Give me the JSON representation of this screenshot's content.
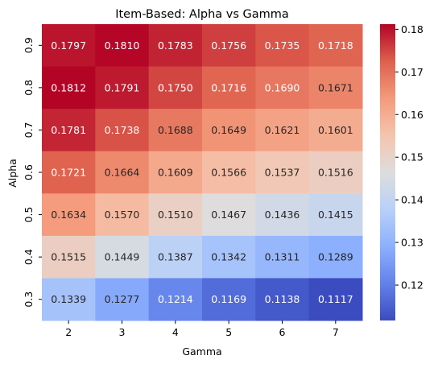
{
  "chart_data": {
    "type": "heatmap",
    "title": "Item-Based: Alpha vs Gamma",
    "xlabel": "Gamma",
    "ylabel": "Alpha",
    "x_categories": [
      "2",
      "3",
      "4",
      "5",
      "6",
      "7"
    ],
    "y_categories": [
      "0.9",
      "0.8",
      "0.7",
      "0.6",
      "0.5",
      "0.4",
      "0.3"
    ],
    "values": [
      [
        0.1797,
        0.181,
        0.1783,
        0.1756,
        0.1735,
        0.1718
      ],
      [
        0.1812,
        0.1791,
        0.175,
        0.1716,
        0.169,
        0.1671
      ],
      [
        0.1781,
        0.1738,
        0.1688,
        0.1649,
        0.1621,
        0.1601
      ],
      [
        0.1721,
        0.1664,
        0.1609,
        0.1566,
        0.1537,
        0.1516
      ],
      [
        0.1634,
        0.157,
        0.151,
        0.1467,
        0.1436,
        0.1415
      ],
      [
        0.1515,
        0.1449,
        0.1387,
        0.1342,
        0.1311,
        0.1289
      ],
      [
        0.1339,
        0.1277,
        0.1214,
        0.1169,
        0.1138,
        0.1117
      ]
    ],
    "value_labels": [
      [
        "0.1797",
        "0.1810",
        "0.1783",
        "0.1756",
        "0.1735",
        "0.1718"
      ],
      [
        "0.1812",
        "0.1791",
        "0.1750",
        "0.1716",
        "0.1690",
        "0.1671"
      ],
      [
        "0.1781",
        "0.1738",
        "0.1688",
        "0.1649",
        "0.1621",
        "0.1601"
      ],
      [
        "0.1721",
        "0.1664",
        "0.1609",
        "0.1566",
        "0.1537",
        "0.1516"
      ],
      [
        "0.1634",
        "0.1570",
        "0.1510",
        "0.1467",
        "0.1436",
        "0.1415"
      ],
      [
        "0.1515",
        "0.1449",
        "0.1387",
        "0.1342",
        "0.1311",
        "0.1289"
      ],
      [
        "0.1339",
        "0.1277",
        "0.1214",
        "0.1169",
        "0.1138",
        "0.1117"
      ]
    ],
    "colormap": "coolwarm",
    "value_range": [
      0.1117,
      0.1812
    ],
    "colorbar_ticks": [
      "0.12",
      "0.13",
      "0.14",
      "0.15",
      "0.16",
      "0.17",
      "0.18"
    ]
  }
}
